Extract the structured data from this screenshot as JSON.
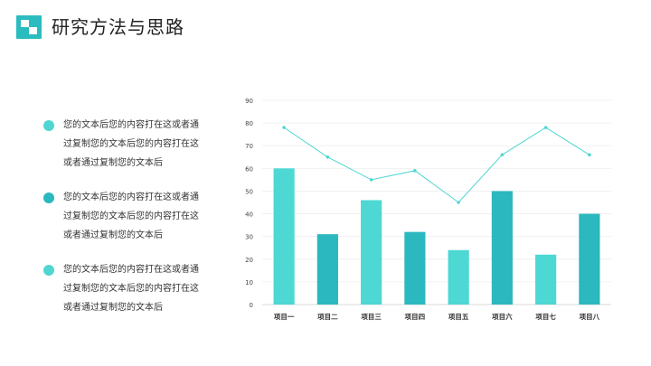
{
  "header": {
    "title": "研究方法与思路"
  },
  "bullets": [
    {
      "text": "您的文本后您的内容打在这或者通过复制您的文本后您的内容打在这或者通过复制您的文本后",
      "color": "#4fd6d1"
    },
    {
      "text": "您的文本后您的内容打在这或者通过复制您的文本后您的内容打在这或者通过复制您的文本后",
      "color": "#2bb8be"
    },
    {
      "text": "您的文本后您的内容打在这或者通过复制您的文本后您的内容打在这或者通过复制您的文本后",
      "color": "#4fd6d1"
    }
  ],
  "chart_data": {
    "type": "bar",
    "categories": [
      "项目一",
      "项目二",
      "项目三",
      "项目四",
      "项目五",
      "项目六",
      "项目七",
      "项目八"
    ],
    "series": [
      {
        "type": "bar",
        "values": [
          60,
          31,
          46,
          32,
          24,
          50,
          22,
          40
        ],
        "colors": [
          "#4dd8d4",
          "#2bb8be"
        ]
      },
      {
        "type": "line",
        "values": [
          78,
          65,
          55,
          59,
          45,
          66,
          78,
          66
        ],
        "color": "#4fd6d1"
      }
    ],
    "ylim": [
      0,
      90
    ],
    "yticks": [
      "0",
      "10",
      "20",
      "30",
      "40",
      "50",
      "60",
      "70",
      "80",
      "90"
    ],
    "grid": true,
    "title": "",
    "xlabel": "",
    "ylabel": ""
  }
}
